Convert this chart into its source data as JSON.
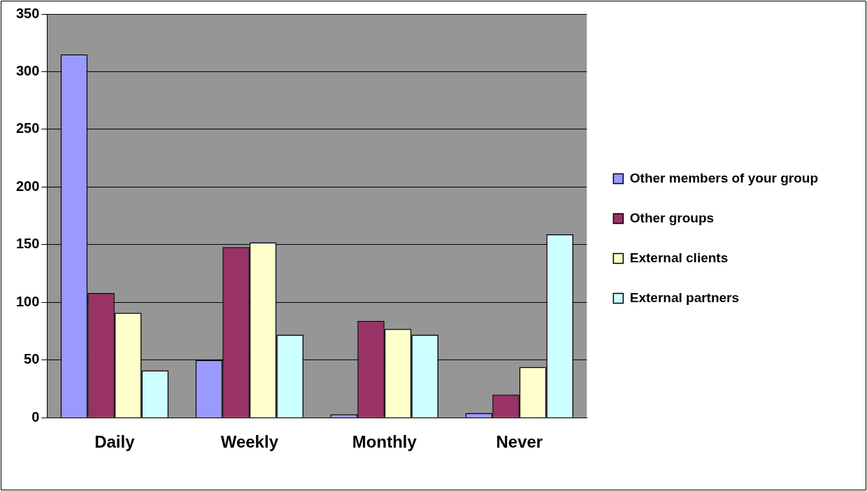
{
  "chart_data": {
    "type": "bar",
    "categories": [
      "Daily",
      "Weekly",
      "Monthly",
      "Never"
    ],
    "series": [
      {
        "name": "Other members of your group",
        "color": "#9999ff",
        "values": [
          315,
          50,
          3,
          4
        ]
      },
      {
        "name": "Other groups",
        "color": "#993366",
        "values": [
          108,
          148,
          84,
          20
        ]
      },
      {
        "name": "External clients",
        "color": "#ffffcc",
        "values": [
          91,
          152,
          77,
          44
        ]
      },
      {
        "name": "External partners",
        "color": "#ccffff",
        "values": [
          41,
          72,
          72,
          159
        ]
      }
    ],
    "ylim": [
      0,
      350
    ],
    "yticks": [
      0,
      50,
      100,
      150,
      200,
      250,
      300,
      350
    ],
    "grid": "y",
    "legend": "right"
  }
}
